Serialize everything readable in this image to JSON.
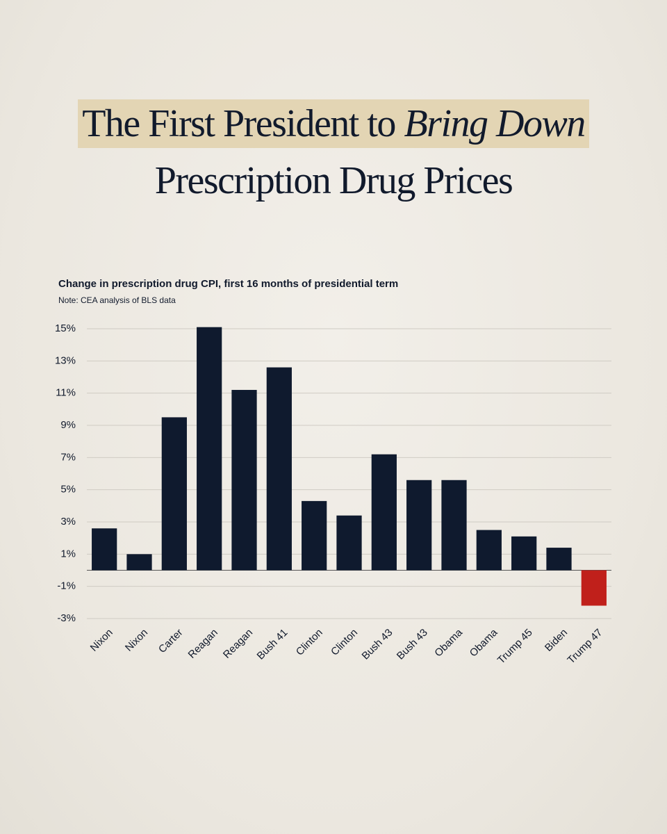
{
  "chart_data": {
    "type": "bar",
    "title": [
      "The First President to",
      "Bring Down",
      "Prescription Drug Prices"
    ],
    "subtitle": "Change in prescription drug CPI, first 16 months of presidential term",
    "note": "Note: CEA analysis of BLS data",
    "categories": [
      "Nixon",
      "Nixon",
      "Carter",
      "Reagan",
      "Reagan",
      "Bush 41",
      "Clinton",
      "Clinton",
      "Bush 43",
      "Bush 43",
      "Obama",
      "Obama",
      "Trump 45",
      "Biden",
      "Trump 47"
    ],
    "values": [
      2.6,
      1.0,
      9.5,
      15.1,
      11.2,
      12.6,
      4.3,
      3.4,
      7.2,
      5.6,
      5.6,
      2.5,
      2.1,
      1.4,
      -2.2
    ],
    "colors": [
      "#0f1a2e",
      "#0f1a2e",
      "#0f1a2e",
      "#0f1a2e",
      "#0f1a2e",
      "#0f1a2e",
      "#0f1a2e",
      "#0f1a2e",
      "#0f1a2e",
      "#0f1a2e",
      "#0f1a2e",
      "#0f1a2e",
      "#0f1a2e",
      "#0f1a2e",
      "#c0201b"
    ],
    "ylim": [
      -3,
      15
    ],
    "yticks": [
      {
        "value": 15,
        "label": "15%"
      },
      {
        "value": 13,
        "label": "13%"
      },
      {
        "value": 11,
        "label": "11%"
      },
      {
        "value": 9,
        "label": "9%"
      },
      {
        "value": 7,
        "label": "7%"
      },
      {
        "value": 5,
        "label": "5%"
      },
      {
        "value": 3,
        "label": "3%"
      },
      {
        "value": 1,
        "label": "1%"
      },
      {
        "value": -1,
        "label": "-1%"
      },
      {
        "value": -3,
        "label": "-3%"
      }
    ],
    "grid": true
  }
}
